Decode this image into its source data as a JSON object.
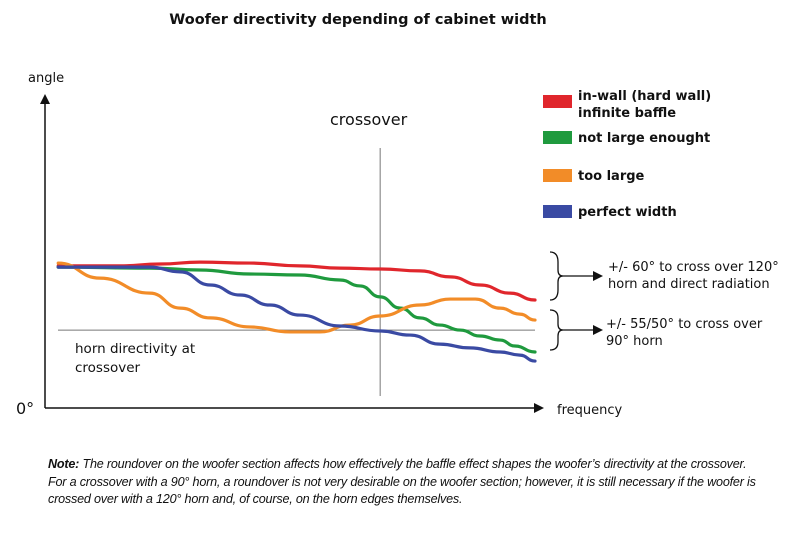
{
  "chart_data": {
    "type": "line",
    "title": "Woofer directivity depending of cabinet width",
    "xlabel": "frequency",
    "ylabel": "angle",
    "y_origin_label": "0°",
    "xlim": [
      0,
      100
    ],
    "ylim": [
      0,
      100
    ],
    "grid": false,
    "legend_position": "top-right",
    "series": [
      {
        "name": "in-wall (hard wall)\ninfinite baffle",
        "name_lines": [
          "in-wall (hard wall)",
          "infinite baffle"
        ],
        "color": "#e0262c",
        "x": [
          2.7,
          15.3,
          23.5,
          31.6,
          41.8,
          52,
          60.2,
          68.4,
          76.5,
          82.7,
          88.8,
          94.9,
          100
        ],
        "y": [
          45.4,
          45.4,
          46,
          46.6,
          46.3,
          45.4,
          44.7,
          44.4,
          43.8,
          41.9,
          39.3,
          36.7,
          34.5
        ]
      },
      {
        "name": "not large enought",
        "color": "#1f9a3e",
        "x": [
          2.7,
          21.4,
          31.6,
          41.8,
          52,
          60.2,
          64.3,
          68.4,
          72.5,
          76.5,
          80.6,
          84.7,
          88.8,
          92.9,
          95.9,
          100
        ],
        "y": [
          45,
          44.7,
          44.1,
          42.8,
          42.5,
          40.9,
          39,
          35.5,
          31.9,
          28.8,
          26.5,
          24.9,
          23,
          21.7,
          19.8,
          17.9
        ]
      },
      {
        "name": "too large",
        "color": "#f28c28",
        "x": [
          2.7,
          11.2,
          21.4,
          27.6,
          33.7,
          41.8,
          50,
          56.1,
          62.2,
          68.4,
          76.5,
          82.7,
          87.8,
          92.9,
          96.9,
          100
        ],
        "y": [
          46.3,
          41.5,
          36.7,
          31.9,
          28.8,
          25.9,
          24.3,
          24.3,
          26.5,
          29.4,
          32.9,
          34.8,
          34.8,
          31.9,
          30,
          28.1
        ]
      },
      {
        "name": "perfect width",
        "color": "#3a4aa3",
        "x": [
          2.7,
          21.4,
          27.6,
          33.7,
          39.8,
          45.9,
          52,
          60.2,
          68.4,
          74.5,
          80.6,
          86.7,
          92.9,
          96.9,
          100
        ],
        "y": [
          45,
          45,
          43.5,
          39.3,
          36.1,
          32.9,
          29.7,
          26.2,
          24.6,
          23.3,
          20.4,
          19.2,
          17.9,
          16.9,
          15
        ]
      }
    ],
    "annotations": {
      "crossover_label": "crossover",
      "crossover_x": 68.4,
      "horn_line_y": 24.9,
      "horn_label_lines": [
        "horn directivity at",
        "crossover"
      ],
      "brace_upper_lines": [
        "+/- 60° to cross over 120°",
        "horn and direct radiation"
      ],
      "brace_lower_lines": [
        "+/- 55/50° to cross over",
        "90° horn"
      ]
    }
  },
  "note": {
    "label": "Note:",
    "line1": " The roundover on the woofer section affects how effectively the baffle effect shapes the woofer’s directivity at the crossover.",
    "line2": "For a crossover with a 90° horn, a roundover is not very desirable on the woofer section; however, it is still necessary if the woofer is crossed over with a 120° horn and, of course, on the horn edges themselves."
  }
}
